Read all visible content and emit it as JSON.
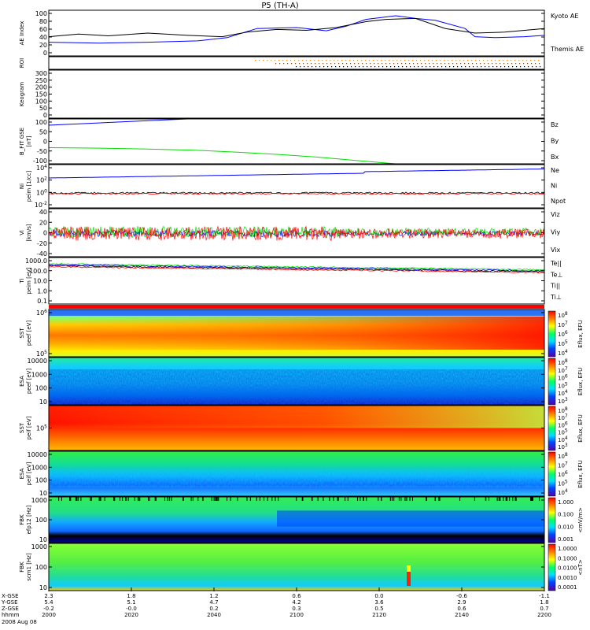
{
  "title": "P5 (TH-A)",
  "colors": {
    "blue": "#0000ff",
    "green": "#00dd00",
    "red": "#ff0000",
    "black": "#000000"
  },
  "chart_data": {
    "type": "line",
    "time_axis": {
      "label": "hhmm",
      "date": "2008 Aug 08",
      "rows": [
        {
          "label": "X-GSE",
          "values": [
            "2.3",
            "1.8",
            "1.2",
            "0.6",
            "0.0",
            "-0.6",
            "-1.1"
          ]
        },
        {
          "label": "Y-GSE",
          "values": [
            "5.4",
            "5.1",
            "4.7",
            "4.2",
            "3.6",
            "2.9",
            "1.8"
          ]
        },
        {
          "label": "Z-GSE",
          "values": [
            "-0.2",
            "-0.0",
            "0.2",
            "0.3",
            "0.5",
            "0.6",
            "0.7"
          ]
        },
        {
          "label": "hhmm",
          "values": [
            "2000",
            "2020",
            "2040",
            "2100",
            "2120",
            "2140",
            "2200"
          ]
        }
      ]
    },
    "panels": [
      {
        "name": "ae",
        "ylabel": "AE Index",
        "yunit": "",
        "yticks": [
          "100",
          "80",
          "60",
          "40",
          "20",
          "0"
        ],
        "legend": [
          {
            "label": "Kyoto AE",
            "color": "#0000ff"
          },
          {
            "label": "Themis AE",
            "color": "#000000"
          }
        ],
        "ylim": [
          0,
          100
        ],
        "series": [
          {
            "color": "#0000ff",
            "t": [
              0,
              0.1,
              0.2,
              0.3,
              0.36,
              0.42,
              0.5,
              0.56,
              0.6,
              0.64,
              0.7,
              0.74,
              0.78,
              0.84,
              0.86,
              0.9,
              0.96,
              1.0
            ],
            "y": [
              30,
              28,
              30,
              33,
              40,
              60,
              62,
              55,
              65,
              80,
              88,
              82,
              78,
              60,
              42,
              40,
              42,
              45
            ]
          },
          {
            "color": "#000000",
            "t": [
              0,
              0.06,
              0.12,
              0.2,
              0.28,
              0.35,
              0.4,
              0.46,
              0.52,
              0.58,
              0.64,
              0.68,
              0.74,
              0.8,
              0.86,
              0.92,
              1.0
            ],
            "y": [
              42,
              48,
              44,
              50,
              45,
              42,
              52,
              58,
              56,
              62,
              75,
              80,
              82,
              60,
              50,
              52,
              60
            ]
          }
        ]
      },
      {
        "name": "roi",
        "ylabel": "ROI",
        "yunit": "",
        "yticks": [],
        "legend": []
      },
      {
        "name": "keogram",
        "ylabel": "Keogram",
        "yunit": "",
        "yticks": [
          "300",
          "250",
          "200",
          "150",
          "100",
          "50",
          "0"
        ],
        "legend": []
      },
      {
        "name": "bfield",
        "ylabel": "B_FIT GSE",
        "yunit": "[nT]",
        "yticks": [
          "100",
          "50",
          "0",
          "-50",
          "-100"
        ],
        "legend": [
          {
            "label": "Bz",
            "color": "#ff0000"
          },
          {
            "label": "By",
            "color": "#00dd00"
          },
          {
            "label": "Bx",
            "color": "#0000ff"
          }
        ],
        "ylim": [
          -100,
          100
        ],
        "series": [
          {
            "color": "#0000ff",
            "t": [
              0,
              0.1,
              0.2,
              0.28
            ],
            "y": [
              72,
              82,
              92,
              100
            ]
          },
          {
            "color": "#00dd00",
            "t": [
              0,
              0.1,
              0.2,
              0.3,
              0.38,
              0.46,
              0.54,
              0.62,
              0.7
            ],
            "y": [
              -28,
              -30,
              -34,
              -40,
              -48,
              -58,
              -70,
              -85,
              -100
            ]
          }
        ]
      },
      {
        "name": "density",
        "ylabel": "Ni",
        "yunit": "peim [1/cc]",
        "yticks": [
          "10^4",
          "10^2",
          "10^0",
          "10^-2"
        ],
        "legend": [
          {
            "label": "Ne",
            "color": "#ff0000"
          },
          {
            "label": "Ni",
            "color": "#000000"
          },
          {
            "label": "Npot",
            "color": "#0000ff"
          }
        ],
        "ylim": [
          -3,
          5
        ]
      },
      {
        "name": "velocity",
        "ylabel": "Vi",
        "yunit": "[km/s]",
        "yticks": [
          "40",
          "20",
          "0",
          "-20",
          "-40"
        ],
        "legend": [
          {
            "label": "Viz",
            "color": "#ff0000"
          },
          {
            "label": "Viy",
            "color": "#00dd00"
          },
          {
            "label": "Vix",
            "color": "#0000ff"
          }
        ],
        "ylim": [
          -50,
          50
        ]
      },
      {
        "name": "temperature",
        "ylabel": "Ti",
        "yunit": "peim [eV]",
        "yticks": [
          "1000.0",
          "100.0",
          "10.0",
          "1.0",
          "0.1"
        ],
        "legend": [
          {
            "label": "Te||",
            "color": "#000000"
          },
          {
            "label": "Te⊥",
            "color": "#ff0000"
          },
          {
            "label": "Ti||",
            "color": "#00dd00"
          },
          {
            "label": "Ti⊥",
            "color": "#0000ff"
          }
        ],
        "ylim": [
          -1.5,
          3.5
        ]
      },
      {
        "name": "sst_e",
        "ylabel": "SST",
        "yunit": "peef [eV]",
        "yticks": [
          "10^6",
          "10^5"
        ],
        "legend": []
      },
      {
        "name": "esa_e",
        "ylabel": "ESA",
        "yunit": "peef [eV]",
        "yticks": [
          "10000",
          "1000",
          "100",
          "10"
        ],
        "legend": []
      },
      {
        "name": "sst_i",
        "ylabel": "SST",
        "yunit": "peif [eV]",
        "yticks": [
          "10^5"
        ],
        "legend": []
      },
      {
        "name": "esa_i",
        "ylabel": "ESA",
        "yunit": "peif [eV]",
        "yticks": [
          "10000",
          "1000",
          "100",
          "10"
        ],
        "legend": []
      },
      {
        "name": "fbk_e",
        "ylabel": "FBK",
        "yunit": "efp12 [Hz]",
        "yticks": [
          "1000",
          "100",
          "10"
        ],
        "legend": []
      },
      {
        "name": "fbk_b",
        "ylabel": "FBK",
        "yunit": "scm1 [Hz]",
        "yticks": [
          "1000",
          "100",
          "10"
        ],
        "legend": []
      }
    ],
    "colorbars": [
      {
        "name": "eflux-1",
        "label": "Eflux, EFU",
        "ticks": [
          "10^8",
          "10^7",
          "10^6",
          "10^5",
          "10^4"
        ]
      },
      {
        "name": "eflux-2",
        "label": "Eflux, EFU",
        "ticks": [
          "10^8",
          "10^7",
          "10^6",
          "10^5",
          "10^4",
          "10^3"
        ]
      },
      {
        "name": "eflux-3",
        "label": "Eflux, EFU",
        "ticks": [
          "10^8",
          "10^7",
          "10^6",
          "10^5",
          "10^4",
          "10^3"
        ]
      },
      {
        "name": "eflux-4",
        "label": "Eflux, EFU",
        "ticks": [
          "10^8",
          "10^7",
          "10^6",
          "10^5",
          "10^4"
        ]
      },
      {
        "name": "mv-m",
        "label": "<mV/m>",
        "ticks": [
          "1.000",
          "0.100",
          "0.010",
          "0.001"
        ]
      },
      {
        "name": "nt",
        "label": "<nT>",
        "ticks": [
          "1.0000",
          "0.1000",
          "0.0100",
          "0.0010",
          "0.0001"
        ]
      }
    ]
  }
}
